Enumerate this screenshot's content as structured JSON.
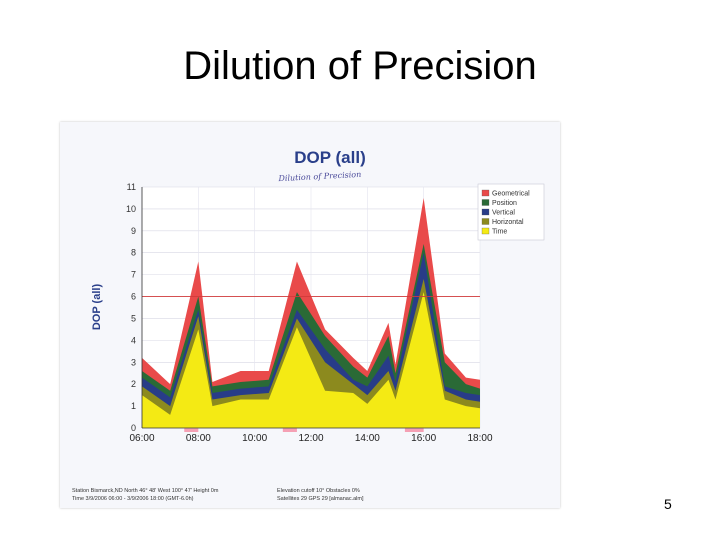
{
  "slide": {
    "title": "Dilution of Precision",
    "page_number": "5",
    "handwritten_note": "Dilution of Precision"
  },
  "chart_data": {
    "type": "area",
    "title": "DOP (all)",
    "ylabel": "DOP (all)",
    "xlabel": "",
    "ylim": [
      0,
      11
    ],
    "yticks": [
      0,
      1,
      2,
      3,
      4,
      5,
      6,
      7,
      8,
      9,
      10,
      11
    ],
    "xticks": [
      "06:00",
      "08:00",
      "10:00",
      "12:00",
      "14:00",
      "16:00",
      "18:00"
    ],
    "reference_line": 6,
    "legend_position": "top-right",
    "x": [
      "06:00",
      "07:00",
      "08:00",
      "08:30",
      "09:30",
      "10:30",
      "11:30",
      "12:30",
      "13:30",
      "14:00",
      "14:45",
      "15:00",
      "16:00",
      "16:45",
      "17:30",
      "18:00"
    ],
    "series": [
      {
        "name": "Time",
        "color": "#f4ea14",
        "values": [
          1.5,
          0.6,
          4.5,
          1.0,
          1.3,
          1.3,
          4.6,
          1.7,
          1.6,
          1.1,
          2.2,
          1.3,
          6.2,
          1.3,
          1.0,
          0.9
        ]
      },
      {
        "name": "Horizontal",
        "color": "#8c8a1e",
        "values": [
          1.9,
          1.0,
          5.1,
          1.3,
          1.5,
          1.6,
          5.0,
          3.0,
          2.0,
          1.5,
          2.6,
          1.7,
          6.8,
          1.7,
          1.3,
          1.2
        ]
      },
      {
        "name": "Vertical",
        "color": "#283c88",
        "values": [
          2.3,
          1.4,
          5.4,
          1.6,
          1.8,
          1.9,
          5.4,
          3.6,
          2.2,
          1.9,
          3.3,
          2.1,
          8.0,
          1.9,
          1.6,
          1.5
        ]
      },
      {
        "name": "Position",
        "color": "#2a6a36",
        "values": [
          2.6,
          1.7,
          6.0,
          1.9,
          2.1,
          2.2,
          6.2,
          4.2,
          2.8,
          2.3,
          4.2,
          2.5,
          8.4,
          3.0,
          2.0,
          1.8
        ]
      },
      {
        "name": "Geometrical",
        "color": "#e94a4a",
        "values": [
          3.2,
          2.0,
          7.6,
          2.1,
          2.6,
          2.6,
          7.6,
          4.5,
          3.2,
          2.6,
          4.8,
          2.9,
          10.5,
          3.4,
          2.3,
          2.2
        ]
      }
    ],
    "legend_order": [
      "Geometrical",
      "Position",
      "Vertical",
      "Horizontal",
      "Time"
    ],
    "footer": {
      "line1": "Station Bismarck,ND  North 46° 48'  West 100° 47'  Height 0m",
      "line2": "Time 3/9/2006 06:00 - 3/9/2006 18:00 (GMT-6.0h)",
      "line3": "Elevation cutoff 10°  Obstacles 0%",
      "line4": "Satellites 29  GPS 29  [almanac.alm]"
    }
  }
}
